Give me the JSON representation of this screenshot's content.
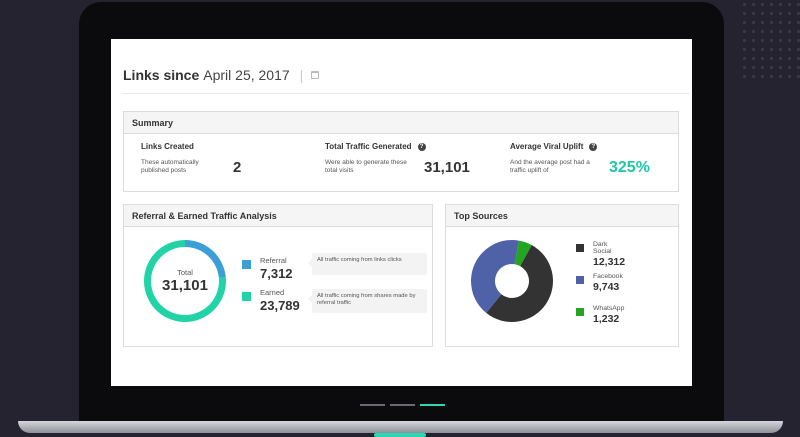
{
  "header": {
    "title_strong": "Links since",
    "title_date": "April 25, 2017",
    "separator": "|"
  },
  "summary": {
    "title": "Summary",
    "stats": [
      {
        "title": "Links Created",
        "desc": "These automatically published posts",
        "value": "2",
        "help": false
      },
      {
        "title": "Total Traffic Generated",
        "desc": "Were able to generate these total visits",
        "value": "31,101",
        "help": true
      },
      {
        "title": "Average Viral Uplift",
        "desc": "And the average post had a traffic uplift of",
        "value": "325%",
        "help": true
      }
    ],
    "help_glyph": "?"
  },
  "referral": {
    "title": "Referral & Earned Traffic Analysis",
    "total_label": "Total",
    "total_value": "31,101",
    "items": [
      {
        "name": "Referral",
        "value": "7,312",
        "note": "All traffic coming from links clicks",
        "color": "#3b9fd6"
      },
      {
        "name": "Earned",
        "value": "23,789",
        "note": "All traffic coming from shares made by referral traffic",
        "color": "#21d3a6"
      }
    ]
  },
  "sources": {
    "title": "Top Sources",
    "items": [
      {
        "name": "Dark Social",
        "value": "12,312",
        "color": "#333333"
      },
      {
        "name": "Facebook",
        "value": "9,743",
        "color": "#4f62a8"
      },
      {
        "name": "WhatsApp",
        "value": "1,232",
        "color": "#24a51f"
      }
    ]
  },
  "colors": {
    "accent": "#2bd6b4",
    "uplift": "#1fc7a7"
  },
  "chart_data": [
    {
      "type": "pie",
      "categories": [
        "Referral",
        "Earned"
      ],
      "values": [
        7312,
        23789
      ],
      "colors": [
        "#3b9fd6",
        "#21d3a6"
      ],
      "donut": true,
      "title": ""
    },
    {
      "type": "pie",
      "categories": [
        "Dark Social",
        "Facebook",
        "WhatsApp"
      ],
      "values": [
        12312,
        9743,
        1232
      ],
      "colors": [
        "#333333",
        "#4f62a8",
        "#24a51f"
      ],
      "donut": true,
      "title": ""
    }
  ]
}
